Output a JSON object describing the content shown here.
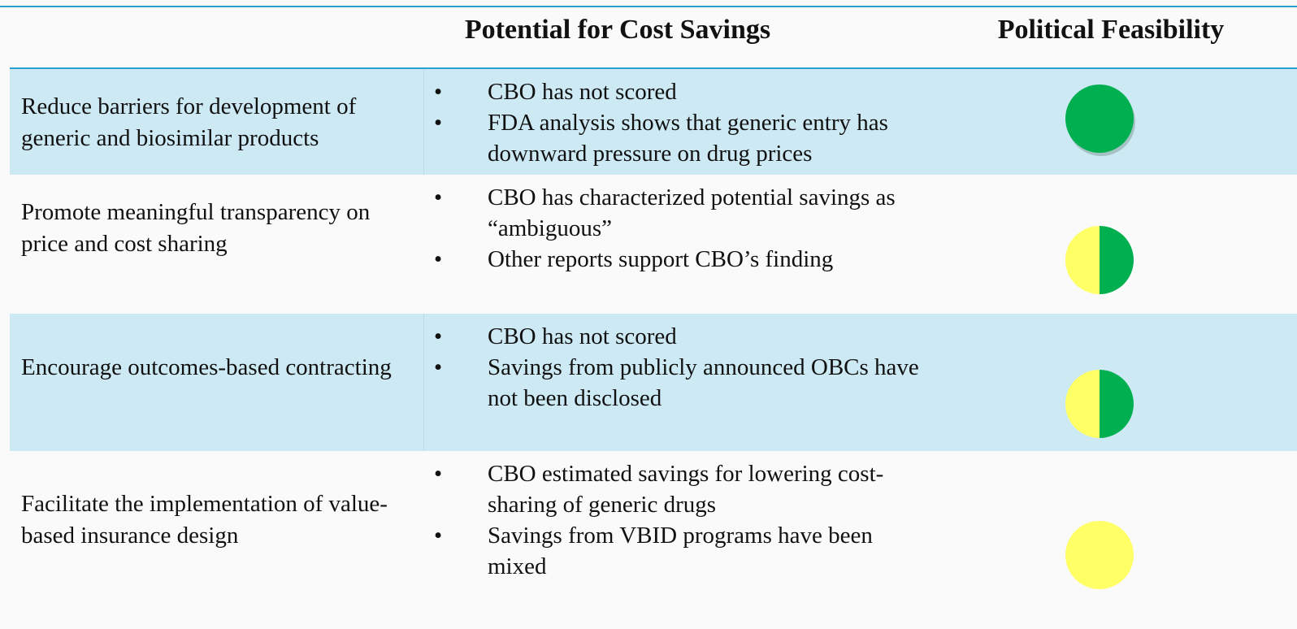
{
  "header": {
    "columns": [
      "Potential for Cost Savings",
      "Political Feasibility"
    ]
  },
  "table": {
    "rows": [
      {
        "policy": "Reduce barriers for development of generic and biosimilar products",
        "bullets": [
          "CBO has not scored",
          "FDA analysis shows that generic entry has downward pressure on drug prices"
        ]
      },
      {
        "policy": "Promote meaningful transparency on price and cost sharing",
        "bullets": [
          "CBO has characterized potential savings as “ambiguous”",
          "Other reports support CBO’s finding"
        ]
      },
      {
        "policy": "Encourage outcomes-based contracting",
        "bullets": [
          "CBO has not scored",
          "Savings from publicly announced OBCs have not been disclosed"
        ]
      },
      {
        "policy": "Facilitate the implementation of value-based insurance design",
        "bullets": [
          "CBO estimated savings for lowering cost-sharing of generic drugs",
          "Savings from VBID programs have been mixed"
        ]
      }
    ]
  }
}
